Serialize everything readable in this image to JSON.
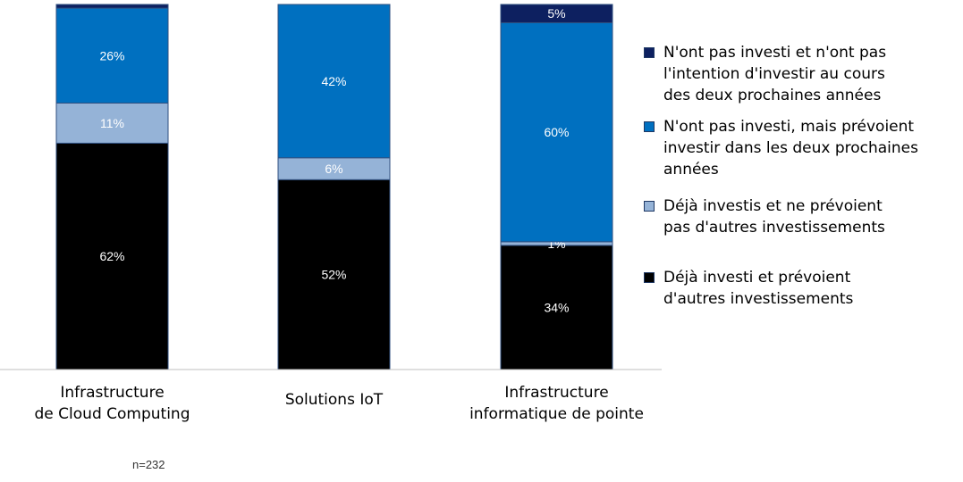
{
  "chart_data": {
    "type": "bar",
    "stacked": true,
    "title": "",
    "xlabel": "",
    "ylabel": "",
    "ylim": [
      0,
      100
    ],
    "categories": [
      "Infrastructure\nde Cloud Computing",
      "Solutions IoT",
      "Infrastructure\ninformatique de pointe"
    ],
    "series": [
      {
        "name": "Déjà investi et prévoient\nd'autres investissements",
        "color": "#000000",
        "values": [
          62,
          52,
          34
        ],
        "labels": [
          "62%",
          "52%",
          "34%"
        ]
      },
      {
        "name": "Déjà investis et ne prévoient\npas d'autres investissements",
        "color": "#95b3d7",
        "values": [
          11,
          6,
          1
        ],
        "labels": [
          "11%",
          "6%",
          "1%"
        ]
      },
      {
        "name": "N'ont pas investi, mais prévoient\ninvestir dans les deux prochaines\nannées",
        "color": "#0070c0",
        "values": [
          26,
          42,
          60
        ],
        "labels": [
          "26%",
          "42%",
          "60%"
        ]
      },
      {
        "name": "N'ont pas investi et n'ont pas\nl'intention d'investir au cours\ndes deux prochaines années",
        "color": "#0d2060",
        "values": [
          1,
          0,
          5
        ],
        "labels": [
          "",
          "",
          "5%"
        ]
      }
    ],
    "legend_position": "right",
    "grid": false
  },
  "note": "n=232"
}
